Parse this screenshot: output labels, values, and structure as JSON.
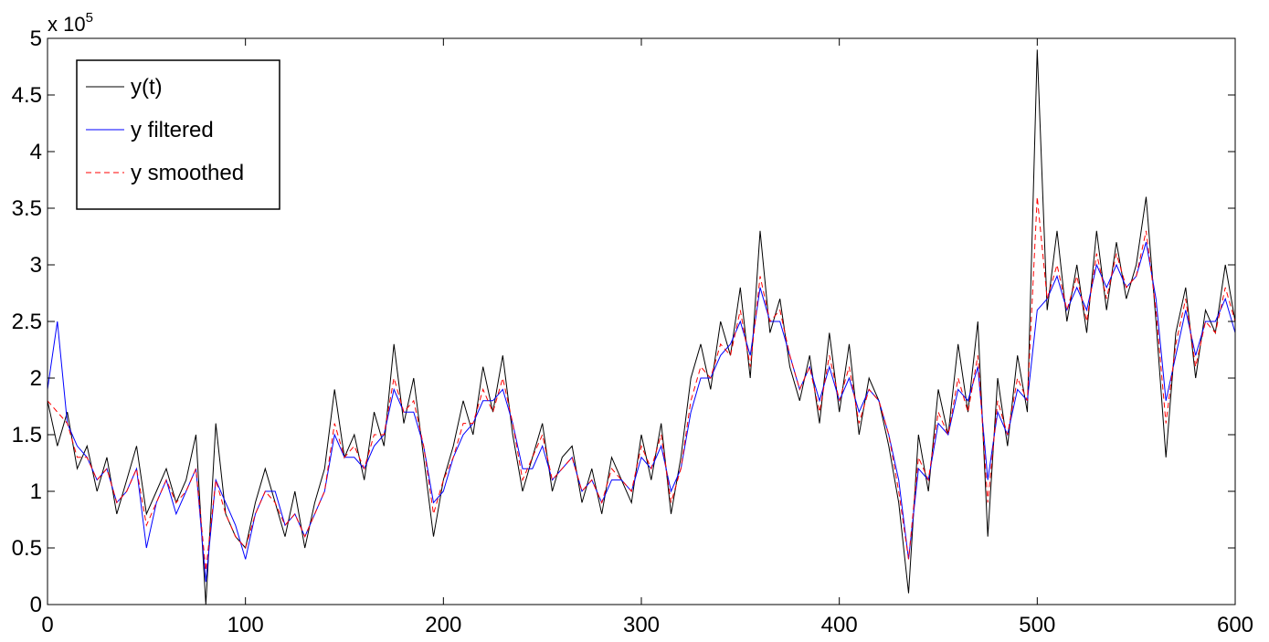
{
  "chart_data": {
    "type": "line",
    "y_scale_label": {
      "base": "x 10",
      "exponent": "5"
    },
    "x": [
      0,
      5,
      10,
      15,
      20,
      25,
      30,
      35,
      40,
      45,
      50,
      55,
      60,
      65,
      70,
      75,
      80,
      85,
      90,
      95,
      100,
      105,
      110,
      115,
      120,
      125,
      130,
      135,
      140,
      145,
      150,
      155,
      160,
      165,
      170,
      175,
      180,
      185,
      190,
      195,
      200,
      205,
      210,
      215,
      220,
      225,
      230,
      235,
      240,
      245,
      250,
      255,
      260,
      265,
      270,
      275,
      280,
      285,
      290,
      295,
      300,
      305,
      310,
      315,
      320,
      325,
      330,
      335,
      340,
      345,
      350,
      355,
      360,
      365,
      370,
      375,
      380,
      385,
      390,
      395,
      400,
      405,
      410,
      415,
      420,
      425,
      430,
      435,
      440,
      445,
      450,
      455,
      460,
      465,
      470,
      475,
      480,
      485,
      490,
      495,
      500,
      505,
      510,
      515,
      520,
      525,
      530,
      535,
      540,
      545,
      550,
      555,
      560,
      565,
      570,
      575,
      580,
      585,
      590,
      595,
      600
    ],
    "series": [
      {
        "name": "y(t)",
        "color": "#000000",
        "dashed": false,
        "values": [
          1.8,
          1.4,
          1.7,
          1.2,
          1.4,
          1.0,
          1.3,
          0.8,
          1.1,
          1.4,
          0.8,
          1.0,
          1.2,
          0.9,
          1.1,
          1.5,
          0.0,
          1.6,
          0.8,
          0.6,
          0.5,
          0.9,
          1.2,
          0.9,
          0.6,
          1.0,
          0.5,
          0.9,
          1.2,
          1.9,
          1.3,
          1.5,
          1.1,
          1.7,
          1.4,
          2.3,
          1.6,
          2.0,
          1.3,
          0.6,
          1.1,
          1.4,
          1.8,
          1.5,
          2.1,
          1.7,
          2.2,
          1.5,
          1.0,
          1.3,
          1.6,
          1.0,
          1.3,
          1.4,
          0.9,
          1.2,
          0.8,
          1.3,
          1.1,
          0.9,
          1.5,
          1.1,
          1.6,
          0.8,
          1.3,
          2.0,
          2.3,
          1.9,
          2.5,
          2.2,
          2.8,
          2.0,
          3.3,
          2.4,
          2.7,
          2.1,
          1.8,
          2.2,
          1.6,
          2.4,
          1.7,
          2.3,
          1.5,
          2.0,
          1.8,
          1.4,
          0.9,
          0.1,
          1.5,
          1.0,
          1.9,
          1.5,
          2.3,
          1.7,
          2.5,
          0.6,
          2.0,
          1.4,
          2.2,
          1.7,
          4.9,
          2.6,
          3.3,
          2.5,
          3.0,
          2.4,
          3.3,
          2.6,
          3.2,
          2.7,
          3.0,
          3.6,
          2.5,
          1.3,
          2.4,
          2.8,
          2.0,
          2.6,
          2.4,
          3.0,
          2.5
        ]
      },
      {
        "name": "y filtered",
        "color": "#0000ff",
        "dashed": false,
        "values": [
          1.9,
          2.5,
          1.6,
          1.4,
          1.3,
          1.1,
          1.2,
          0.9,
          1.0,
          1.2,
          0.5,
          0.9,
          1.1,
          0.8,
          1.0,
          1.2,
          0.2,
          1.1,
          0.9,
          0.7,
          0.4,
          0.8,
          1.0,
          1.0,
          0.7,
          0.8,
          0.6,
          0.8,
          1.0,
          1.5,
          1.3,
          1.3,
          1.2,
          1.4,
          1.5,
          1.9,
          1.7,
          1.7,
          1.4,
          0.9,
          1.0,
          1.3,
          1.5,
          1.6,
          1.8,
          1.8,
          1.9,
          1.6,
          1.2,
          1.2,
          1.4,
          1.1,
          1.2,
          1.3,
          1.0,
          1.1,
          0.9,
          1.1,
          1.1,
          1.0,
          1.3,
          1.2,
          1.4,
          1.0,
          1.2,
          1.7,
          2.0,
          2.0,
          2.2,
          2.3,
          2.5,
          2.2,
          2.8,
          2.5,
          2.5,
          2.2,
          1.9,
          2.1,
          1.8,
          2.1,
          1.8,
          2.0,
          1.7,
          1.9,
          1.8,
          1.5,
          1.1,
          0.4,
          1.2,
          1.1,
          1.6,
          1.5,
          1.9,
          1.8,
          2.1,
          1.1,
          1.7,
          1.5,
          1.9,
          1.8,
          2.6,
          2.7,
          2.9,
          2.6,
          2.8,
          2.6,
          3.0,
          2.8,
          3.0,
          2.8,
          2.9,
          3.2,
          2.7,
          1.8,
          2.2,
          2.6,
          2.2,
          2.5,
          2.5,
          2.7,
          2.4
        ]
      },
      {
        "name": "y smoothed",
        "color": "#ff0000",
        "dashed": true,
        "values": [
          1.8,
          1.7,
          1.6,
          1.3,
          1.3,
          1.1,
          1.2,
          0.9,
          1.0,
          1.2,
          0.7,
          0.9,
          1.1,
          0.9,
          1.0,
          1.2,
          0.3,
          1.1,
          0.8,
          0.6,
          0.5,
          0.8,
          1.0,
          0.9,
          0.7,
          0.8,
          0.6,
          0.8,
          1.0,
          1.6,
          1.3,
          1.4,
          1.2,
          1.5,
          1.5,
          2.0,
          1.7,
          1.8,
          1.4,
          0.8,
          1.1,
          1.3,
          1.6,
          1.6,
          1.9,
          1.7,
          2.0,
          1.6,
          1.1,
          1.3,
          1.5,
          1.1,
          1.2,
          1.3,
          1.0,
          1.1,
          0.9,
          1.2,
          1.1,
          1.0,
          1.4,
          1.2,
          1.5,
          0.9,
          1.2,
          1.8,
          2.1,
          2.0,
          2.3,
          2.2,
          2.6,
          2.1,
          2.9,
          2.5,
          2.6,
          2.2,
          1.9,
          2.1,
          1.7,
          2.2,
          1.8,
          2.1,
          1.6,
          1.9,
          1.8,
          1.5,
          1.0,
          0.4,
          1.3,
          1.1,
          1.7,
          1.5,
          2.0,
          1.7,
          2.2,
          0.9,
          1.8,
          1.5,
          2.0,
          1.8,
          3.6,
          2.7,
          3.0,
          2.6,
          2.9,
          2.5,
          3.1,
          2.7,
          3.1,
          2.8,
          2.9,
          3.3,
          2.6,
          1.6,
          2.3,
          2.7,
          2.1,
          2.5,
          2.4,
          2.8,
          2.5
        ]
      }
    ],
    "xlim": [
      0,
      600
    ],
    "xticks": [
      0,
      100,
      200,
      300,
      400,
      500,
      600
    ],
    "ylim": [
      0,
      5
    ],
    "yticks": [
      0,
      0.5,
      1,
      1.5,
      2,
      2.5,
      3,
      3.5,
      4,
      4.5,
      5
    ],
    "grid": false,
    "legend": "upper left"
  }
}
